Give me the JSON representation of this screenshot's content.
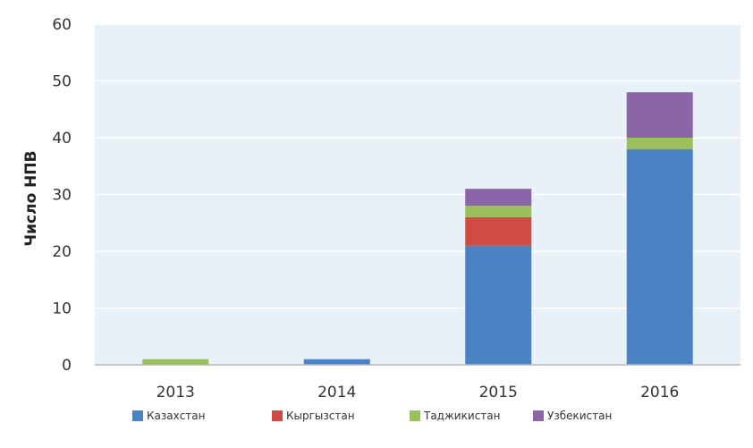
{
  "chart_data": {
    "type": "bar",
    "stacked": true,
    "categories": [
      "2013",
      "2014",
      "2015",
      "2016"
    ],
    "series": [
      {
        "name": "Казахстан",
        "color": "#4a82c3",
        "values": [
          0,
          1,
          21,
          38
        ]
      },
      {
        "name": "Кыргызстан",
        "color": "#cf4b43",
        "values": [
          0,
          0,
          5,
          0
        ]
      },
      {
        "name": "Таджикистан",
        "color": "#9bbf5a",
        "values": [
          1,
          0,
          2,
          2
        ]
      },
      {
        "name": "Узбекистан",
        "color": "#8c64a8",
        "values": [
          0,
          0,
          3,
          8
        ]
      }
    ],
    "title": "",
    "xlabel": "",
    "ylabel": "Число НПВ",
    "ylim": [
      0,
      60
    ],
    "yticks": [
      "0",
      "10",
      "20",
      "30",
      "40",
      "50",
      "60"
    ],
    "grid": true,
    "legend_position": "bottom",
    "plot_background": "#e9f1f8"
  }
}
